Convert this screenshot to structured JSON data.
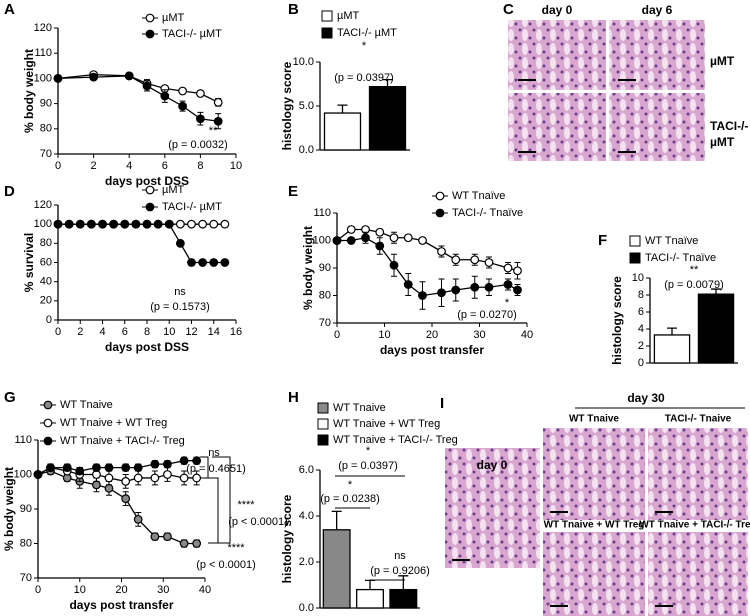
{
  "chart_data": [
    {
      "type": "line",
      "panel": "A",
      "xlabel": "days post DSS",
      "ylabel": "% body weight",
      "x": [
        0,
        2,
        4,
        5,
        6,
        7,
        8,
        9
      ],
      "xlim": [
        0,
        10
      ],
      "xticks": [
        0,
        2,
        4,
        6,
        8,
        10
      ],
      "ylim": [
        70,
        120
      ],
      "yticks": [
        70,
        80,
        90,
        100,
        110,
        120
      ],
      "series": [
        {
          "name": "µMT",
          "color": "#ffffff",
          "values": [
            100,
            101.5,
            101,
            98,
            96,
            95,
            94,
            90.5
          ],
          "errors": [
            0,
            1,
            1,
            1.5,
            1,
            1,
            1,
            1.5
          ]
        },
        {
          "name": "TACI-/- µMT",
          "color": "#000000",
          "values": [
            100,
            100.5,
            101,
            97,
            93,
            89,
            84,
            83
          ],
          "errors": [
            0,
            1,
            1,
            2,
            2.5,
            2,
            2.5,
            3
          ]
        }
      ],
      "annotations": [
        "**",
        "(p = 0.0032)"
      ]
    },
    {
      "type": "bar",
      "panel": "B",
      "ylabel": "histology score",
      "ylim": [
        0,
        10
      ],
      "yticks": [
        {
          "value": 0,
          "label": "0.0"
        },
        {
          "value": 5,
          "label": "5.0"
        },
        {
          "value": 10,
          "label": "10.0"
        }
      ],
      "series": [
        {
          "name": "µMT",
          "color": "#ffffff",
          "values": [
            4.2
          ],
          "errors": [
            0.9
          ]
        },
        {
          "name": "TACI-/- µMT",
          "color": "#000000",
          "values": [
            7.2
          ],
          "errors": [
            0.8
          ]
        }
      ],
      "annotations": [
        "*",
        "(p = 0.0397)"
      ]
    },
    {
      "type": "line",
      "panel": "D",
      "xlabel": "days post DSS",
      "ylabel": "% survival",
      "x": [
        0,
        1,
        2,
        3,
        4,
        5,
        6,
        7,
        8,
        9,
        10,
        11,
        12,
        13,
        14,
        15
      ],
      "xlim": [
        0,
        16
      ],
      "xticks": [
        0,
        2,
        4,
        6,
        8,
        10,
        12,
        14,
        16
      ],
      "ylim": [
        0,
        120
      ],
      "yticks": [
        0,
        20,
        40,
        60,
        80,
        100,
        120
      ],
      "series": [
        {
          "name": "µMT",
          "color": "#ffffff",
          "values": [
            100,
            100,
            100,
            100,
            100,
            100,
            100,
            100,
            100,
            100,
            100,
            100,
            100,
            100,
            100,
            100
          ]
        },
        {
          "name": "TACI-/- µMT",
          "color": "#000000",
          "values": [
            100,
            100,
            100,
            100,
            100,
            100,
            100,
            100,
            100,
            100,
            100,
            80,
            60,
            60,
            60,
            60
          ]
        }
      ],
      "annotations": [
        "ns",
        "(p = 0.1573)"
      ]
    },
    {
      "type": "line",
      "panel": "E",
      "xlabel": "days post transfer",
      "ylabel": "% body weight",
      "x": [
        0,
        3,
        6,
        9,
        12,
        15,
        18,
        22,
        25,
        29,
        32,
        36,
        38
      ],
      "xlim": [
        0,
        40
      ],
      "xticks": [
        0,
        10,
        20,
        30,
        40
      ],
      "ylim": [
        70,
        110
      ],
      "yticks": [
        70,
        80,
        90,
        100,
        110
      ],
      "series": [
        {
          "name": "WT Tnaïve",
          "color": "#ffffff",
          "values": [
            100,
            104,
            104,
            103,
            101,
            101,
            100,
            96,
            93,
            93,
            92,
            90,
            89
          ],
          "errors": [
            0,
            1,
            1,
            1,
            2,
            1,
            1,
            2,
            2,
            2,
            2,
            2,
            3
          ]
        },
        {
          "name": "TACI-/- Tnaïve",
          "color": "#000000",
          "values": [
            100,
            100,
            101,
            98,
            91,
            84,
            80,
            81,
            82,
            83,
            83,
            84,
            82
          ],
          "errors": [
            0,
            1,
            2,
            3,
            4,
            4,
            5,
            5,
            4,
            4,
            3,
            2,
            2
          ]
        }
      ],
      "annotations": [
        "*",
        "(p = 0.0270)"
      ]
    },
    {
      "type": "bar",
      "panel": "F",
      "ylabel": "histology score",
      "ylim": [
        0,
        10
      ],
      "yticks": [
        0,
        2,
        4,
        6,
        8,
        10
      ],
      "series": [
        {
          "name": "WT Tnaïve",
          "color": "#ffffff",
          "values": [
            3.3
          ],
          "errors": [
            0.8
          ]
        },
        {
          "name": "TACI-/- Tnaïve",
          "color": "#000000",
          "values": [
            8.1
          ],
          "errors": [
            0.6
          ]
        }
      ],
      "annotations": [
        "**",
        "(p = 0.0079)"
      ]
    },
    {
      "type": "line",
      "panel": "G",
      "xlabel": "days post transfer",
      "ylabel": "% body weight",
      "x": [
        0,
        3,
        7,
        10,
        14,
        17,
        21,
        24,
        28,
        31,
        35,
        38
      ],
      "xlim": [
        0,
        40
      ],
      "xticks": [
        0,
        10,
        20,
        30,
        40
      ],
      "ylim": [
        70,
        110
      ],
      "yticks": [
        70,
        80,
        90,
        100,
        110
      ],
      "series": [
        {
          "name": "WT Tnaive",
          "color": "#888888",
          "values": [
            100,
            101,
            99,
            98,
            97,
            96,
            93,
            87,
            82,
            82,
            80,
            80
          ],
          "errors": [
            0,
            1,
            1,
            2,
            2,
            2,
            2,
            2,
            1,
            1,
            1,
            1
          ]
        },
        {
          "name": "WT Tnaive + WT Treg",
          "color": "#ffffff",
          "values": [
            100,
            102,
            101,
            100,
            100,
            99,
            98,
            99,
            99,
            100,
            99,
            99
          ],
          "errors": [
            0,
            1,
            1,
            2,
            2,
            2,
            2,
            2,
            2,
            2,
            2,
            2
          ]
        },
        {
          "name": "WT Tnaive + TACI-/- Treg",
          "color": "#000000",
          "values": [
            100,
            102,
            102,
            101,
            102,
            102,
            102,
            102,
            103,
            103,
            104,
            104
          ],
          "errors": [
            0,
            1,
            1,
            1,
            1,
            1,
            1,
            1,
            1,
            1,
            1,
            1
          ]
        }
      ],
      "annotations": [
        "ns",
        "(p = 0.4651)",
        "****",
        "(p < 0.0001)",
        "****",
        "(p < 0.0001)"
      ]
    },
    {
      "type": "bar",
      "panel": "H",
      "ylabel": "histology score",
      "ylim": [
        0,
        6
      ],
      "yticks": [
        {
          "value": 0,
          "label": "0.0"
        },
        {
          "value": 2,
          "label": "2.0"
        },
        {
          "value": 4,
          "label": "4.0"
        },
        {
          "value": 6,
          "label": "6.0"
        }
      ],
      "series": [
        {
          "name": "WT Tnaive",
          "color": "#888888",
          "values": [
            3.4
          ],
          "errors": [
            0.8
          ]
        },
        {
          "name": "WT Tnaive + WT Treg",
          "color": "#ffffff",
          "values": [
            0.8
          ],
          "errors": [
            0.4
          ]
        },
        {
          "name": "WT Tnaive + TACI-/- Treg",
          "color": "#000000",
          "values": [
            0.8
          ],
          "errors": [
            0.6
          ]
        }
      ],
      "annotations": [
        "*",
        "(p = 0.0397)",
        "*",
        "(p = 0.0238)",
        "ns",
        "(p = 0.9206)"
      ]
    }
  ],
  "image_panels": [
    {
      "panel": "C",
      "labels": [
        "day 0",
        "day 6",
        "µMT",
        "TACI-/-",
        "µMT"
      ]
    },
    {
      "panel": "I",
      "labels": [
        "day 30",
        "day 0",
        "WT Tnaive",
        "TACI-/- Tnaive",
        "WT Tnaive + WT Treg",
        "WT Tnaive + TACI-/- Treg"
      ]
    }
  ]
}
